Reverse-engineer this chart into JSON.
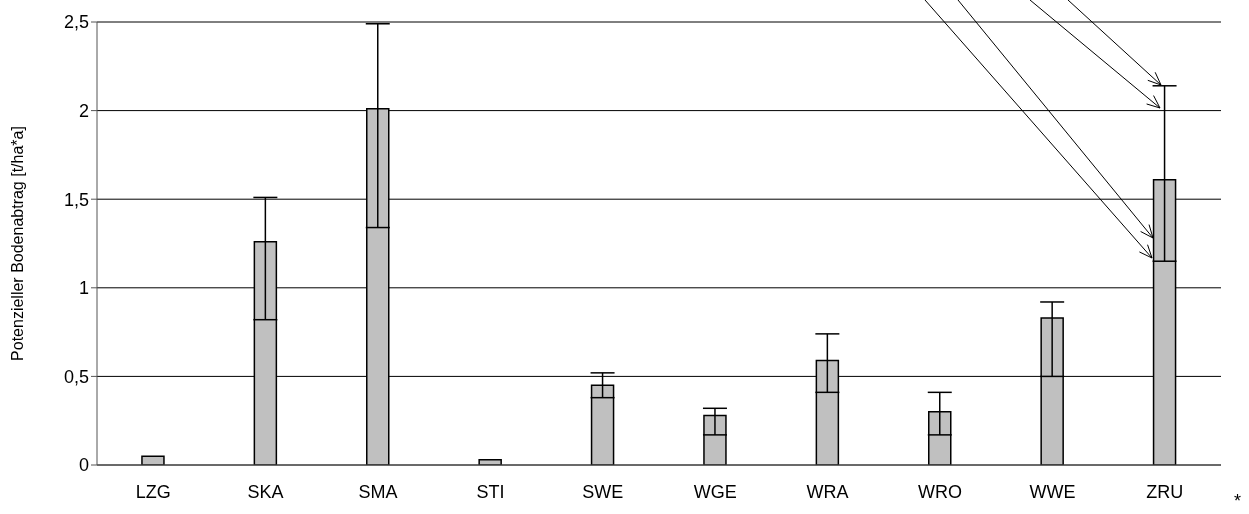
{
  "chart_data": {
    "type": "bar",
    "ylabel": "Potenzieller Bodenabtrag [t/ha*a]",
    "categories": [
      "LZG",
      "SKA",
      "SMA",
      "STI",
      "SWE",
      "WGE",
      "WRA",
      "WRO",
      "WWE",
      "ZRU"
    ],
    "values": [
      0.05,
      1.26,
      2.01,
      0.03,
      0.45,
      0.28,
      0.59,
      0.3,
      0.83,
      1.61
    ],
    "errors": [
      null,
      [
        0.82,
        1.51
      ],
      [
        1.34,
        2.49
      ],
      null,
      [
        0.38,
        0.52
      ],
      [
        0.17,
        0.32
      ],
      [
        0.41,
        0.74
      ],
      [
        0.17,
        0.41
      ],
      [
        0.5,
        0.92
      ],
      [
        1.15,
        2.14
      ]
    ],
    "color": "#c0c0c0",
    "ylim": [
      0,
      2.5
    ],
    "yticks": [
      0,
      {
        "value": 0.5,
        "label": "0,5"
      },
      1,
      {
        "value": 1.5,
        "label": "1,5"
      },
      2,
      {
        "value": 2.5,
        "label": "2,5"
      }
    ],
    "grid": "y",
    "legend": false,
    "annotations": [
      "*"
    ]
  }
}
